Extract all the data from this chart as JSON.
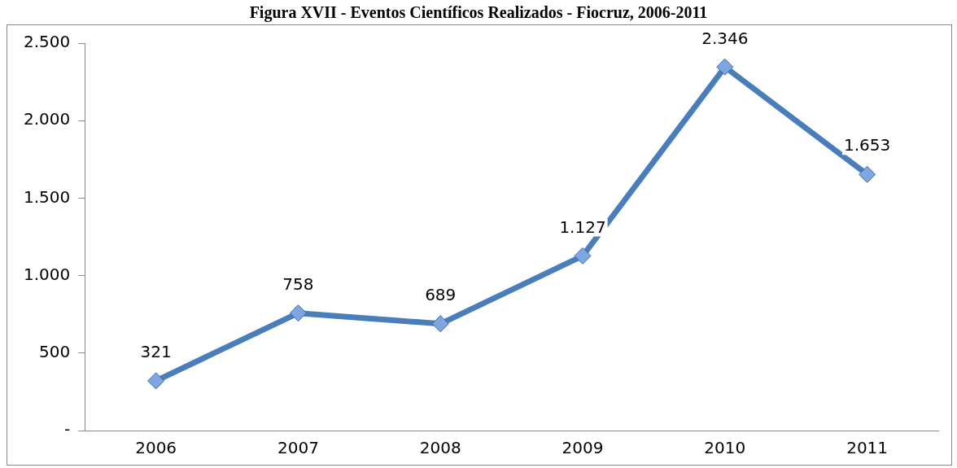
{
  "chart_data": {
    "type": "line",
    "title": "Figura XVII - Eventos Científicos Realizados - Fiocruz, 2006-2011",
    "categories": [
      "2006",
      "2007",
      "2008",
      "2009",
      "2010",
      "2011"
    ],
    "series": [
      {
        "color": "#4a7ebb",
        "values": [
          321,
          758,
          689,
          1127,
          2346,
          1653
        ],
        "value_labels": [
          "321",
          "758",
          "689",
          "1.127",
          "2.346",
          "1.653"
        ]
      }
    ],
    "ylim": [
      0,
      2500
    ],
    "yticks": [
      {
        "value": 0,
        "label": "-"
      },
      {
        "value": 500,
        "label": "500"
      },
      {
        "value": 1000,
        "label": "1.000"
      },
      {
        "value": 1500,
        "label": "1.500"
      },
      {
        "value": 2000,
        "label": "2.000"
      },
      {
        "value": 2500,
        "label": "2.500"
      }
    ],
    "grid": false,
    "legend": false,
    "marker": "diamond",
    "line_style": "solid"
  }
}
